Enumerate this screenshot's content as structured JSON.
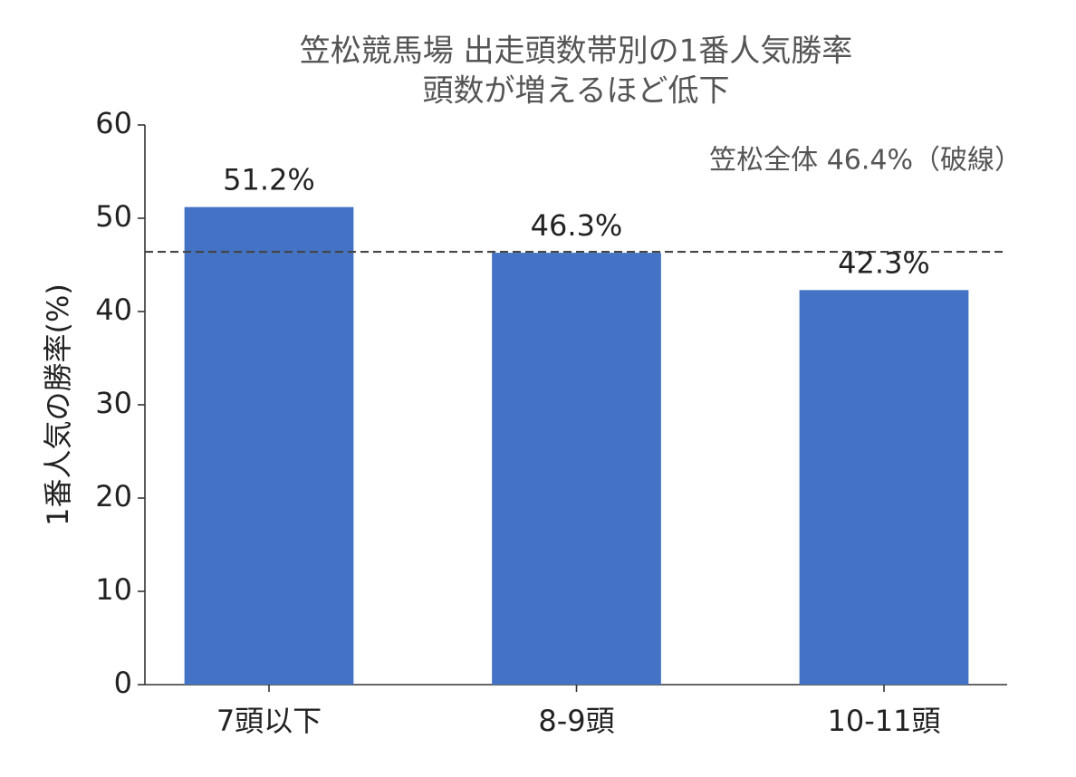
{
  "chart_data": {
    "type": "bar",
    "title": "笠松競馬場 出走頭数帯別の1番人気勝率",
    "subtitle": "頭数が増えるほど低下",
    "y_label": "1番人気の勝率(%)",
    "categories": [
      "7頭以下",
      "8-9頭",
      "10-11頭"
    ],
    "values": [
      51.2,
      46.3,
      42.3
    ],
    "value_labels": [
      "51.2%",
      "46.3%",
      "42.3%"
    ],
    "color": "#4472c4",
    "ylim": [
      0,
      60
    ],
    "yticks": [
      0,
      10,
      20,
      30,
      40,
      50,
      60
    ],
    "reference_line": {
      "value": 46.4,
      "label": "笠松全体 46.4%（破線）",
      "style": "dashed",
      "color": "#444444"
    }
  }
}
